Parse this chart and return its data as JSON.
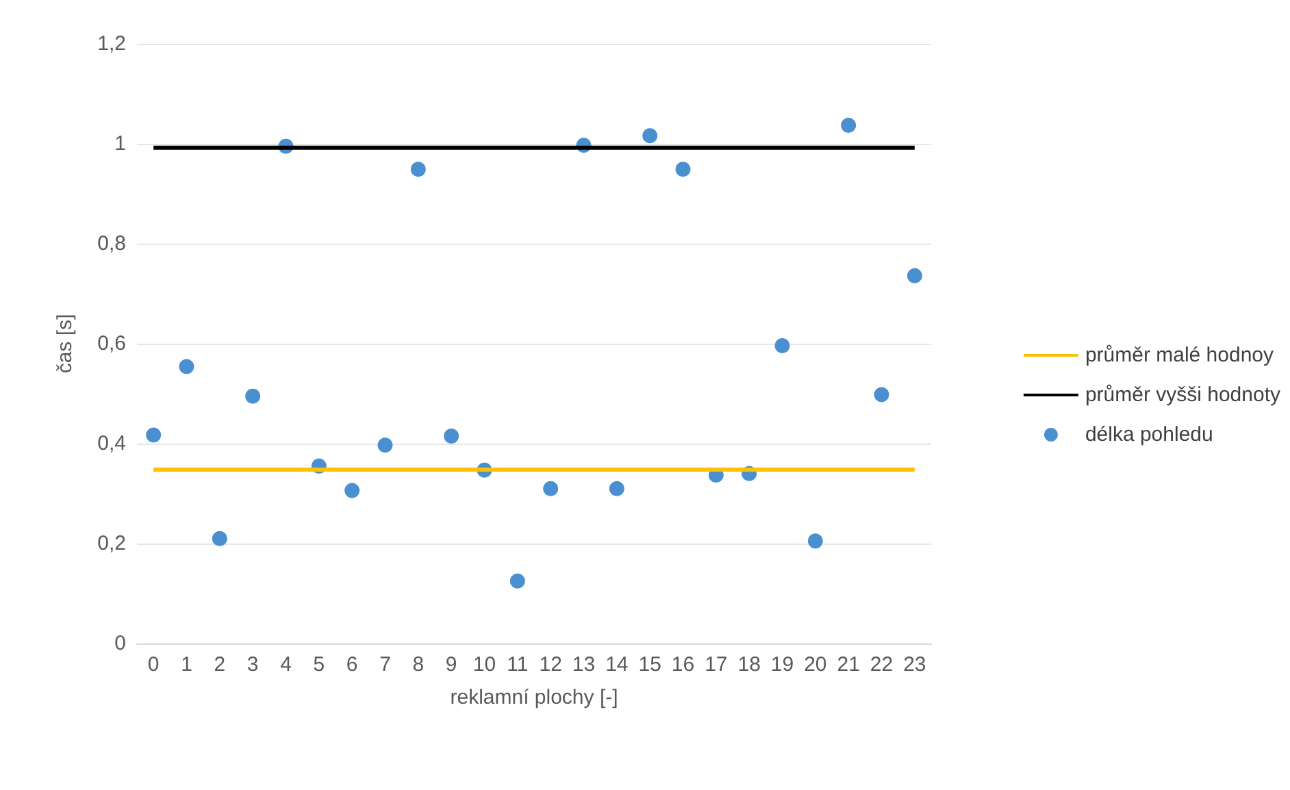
{
  "chart_data": {
    "type": "scatter",
    "xlabel": "reklamní plochy [-]",
    "ylabel": "čas [s]",
    "xlim": [
      -0.5,
      23.5
    ],
    "xticks": [
      0,
      1,
      2,
      3,
      4,
      5,
      6,
      7,
      8,
      9,
      10,
      11,
      12,
      13,
      14,
      15,
      16,
      17,
      18,
      19,
      20,
      21,
      22,
      23
    ],
    "ylim": [
      0,
      1.2
    ],
    "yticks": [
      {
        "value": 0,
        "label": "0"
      },
      {
        "value": 0.2,
        "label": "0,2"
      },
      {
        "value": 0.4,
        "label": "0,4"
      },
      {
        "value": 0.6,
        "label": "0,6"
      },
      {
        "value": 0.8,
        "label": "0,8"
      },
      {
        "value": 1,
        "label": "1"
      },
      {
        "value": 1.2,
        "label": "1,2"
      }
    ],
    "grid": "y",
    "legend": "right",
    "marker": "circle",
    "series": [
      {
        "name": "průměr malé hodnoy",
        "type": "line",
        "marker": "none",
        "color": "#ffc000",
        "x": [
          0,
          23
        ],
        "values": [
          0.348,
          0.348
        ]
      },
      {
        "name": "průměr vyšši hodnoty",
        "type": "line",
        "marker": "none",
        "color": "#000000",
        "x": [
          0,
          23
        ],
        "values": [
          0.992,
          0.992
        ]
      },
      {
        "name": "délka pohledu",
        "type": "scatter",
        "color": "#4a90d0",
        "x": [
          0,
          1,
          2,
          3,
          4,
          5,
          6,
          7,
          8,
          9,
          10,
          11,
          12,
          13,
          14,
          15,
          16,
          17,
          18,
          19,
          20,
          21,
          22,
          23
        ],
        "values": [
          0.417,
          0.554,
          0.21,
          0.495,
          0.995,
          0.355,
          0.306,
          0.397,
          0.949,
          0.415,
          0.347,
          0.125,
          0.31,
          0.997,
          0.31,
          1.016,
          0.949,
          0.337,
          0.34,
          0.596,
          0.205,
          1.037,
          0.498,
          0.736
        ]
      }
    ]
  }
}
